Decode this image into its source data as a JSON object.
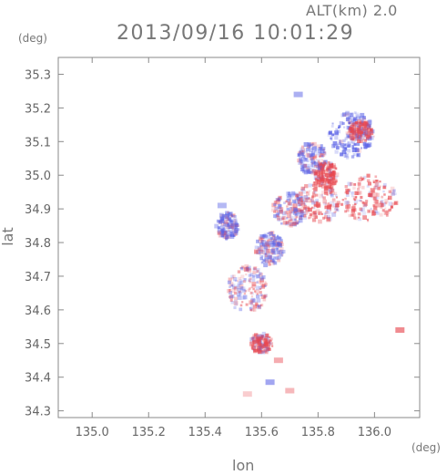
{
  "header": {
    "alt_label": "ALT(km) 2.0",
    "title": "2013/09/16 10:01:29",
    "y_unit": "(deg)",
    "x_unit": "(deg)"
  },
  "chart_data": {
    "type": "heatmap",
    "title": "2013/09/16 10:01:29",
    "xlabel": "lon",
    "ylabel": "lat",
    "xlim": [
      134.88,
      136.16
    ],
    "ylim": [
      34.28,
      35.35
    ],
    "x_ticks": [
      "135.0",
      "135.2",
      "135.4",
      "135.6",
      "135.8",
      "136.0"
    ],
    "x_tick_values": [
      135.0,
      135.2,
      135.4,
      135.6,
      135.8,
      136.0
    ],
    "y_ticks": [
      "34.3",
      "34.4",
      "34.5",
      "34.6",
      "34.7",
      "34.8",
      "34.9",
      "35.0",
      "35.1",
      "35.2",
      "35.3"
    ],
    "y_tick_values": [
      34.3,
      34.4,
      34.5,
      34.6,
      34.7,
      34.8,
      34.9,
      35.0,
      35.1,
      35.2,
      35.3
    ],
    "colors": {
      "positive": "#e8474f",
      "negative": "#5b63e6",
      "axis": "#8a8a8a"
    },
    "clusters": [
      {
        "lon": 135.92,
        "lat": 35.12,
        "rlon": 0.08,
        "rlat": 0.07,
        "v": -0.45
      },
      {
        "lon": 135.98,
        "lat": 34.93,
        "rlon": 0.1,
        "rlat": 0.07,
        "v": 0.35
      },
      {
        "lon": 135.8,
        "lat": 34.92,
        "rlon": 0.08,
        "rlat": 0.06,
        "v": 0.25
      },
      {
        "lon": 135.7,
        "lat": 34.9,
        "rlon": 0.06,
        "rlat": 0.05,
        "v": -0.05
      },
      {
        "lon": 135.55,
        "lat": 34.66,
        "rlon": 0.07,
        "rlat": 0.07,
        "v": 0.05
      },
      {
        "lon": 135.63,
        "lat": 34.78,
        "rlon": 0.05,
        "rlat": 0.05,
        "v": -0.15
      },
      {
        "lon": 135.48,
        "lat": 34.85,
        "rlon": 0.04,
        "rlat": 0.04,
        "v": -0.2
      },
      {
        "lon": 135.78,
        "lat": 35.05,
        "rlon": 0.05,
        "rlat": 0.05,
        "v": -0.2
      },
      {
        "lon": 135.83,
        "lat": 35.0,
        "rlon": 0.04,
        "rlat": 0.04,
        "v": 0.4
      },
      {
        "lon": 135.95,
        "lat": 35.13,
        "rlon": 0.04,
        "rlat": 0.03,
        "v": 0.3
      },
      {
        "lon": 135.6,
        "lat": 34.5,
        "rlon": 0.04,
        "rlat": 0.03,
        "v": 0.25
      }
    ],
    "features": [
      {
        "lon": 135.63,
        "lat": 34.385,
        "v": -0.7
      },
      {
        "lon": 136.09,
        "lat": 34.54,
        "v": 0.8
      },
      {
        "lon": 135.66,
        "lat": 34.45,
        "v": 0.5
      },
      {
        "lon": 135.46,
        "lat": 34.91,
        "v": -0.5
      },
      {
        "lon": 135.73,
        "lat": 35.24,
        "v": -0.6
      },
      {
        "lon": 135.7,
        "lat": 34.36,
        "v": 0.4
      },
      {
        "lon": 135.55,
        "lat": 34.35,
        "v": 0.2
      }
    ]
  }
}
